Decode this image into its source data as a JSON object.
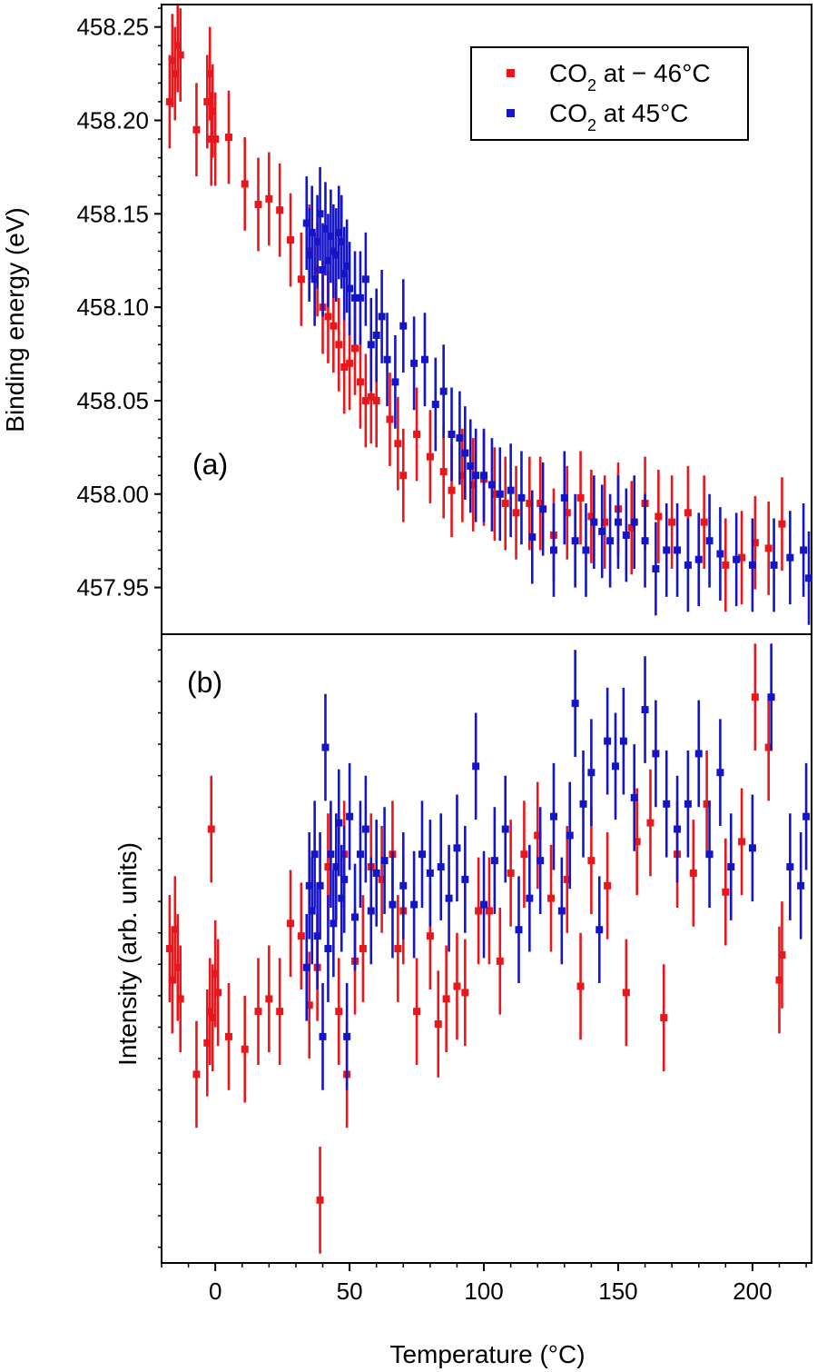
{
  "figure": {
    "x_axis_title": "Temperature (°C)",
    "legend_entries": [
      {
        "prefix": "CO",
        "sub": "2",
        "suffix": " at − 46°C",
        "color": "#e8171c"
      },
      {
        "prefix": "CO",
        "sub": "2",
        "suffix": " at 45°C",
        "color": "#1515c8"
      }
    ]
  },
  "chart_data": [
    {
      "type": "scatter",
      "panel_label": "(a)",
      "ylabel": "Binding energy (eV)",
      "xlim": [
        -20,
        222
      ],
      "ylim": [
        457.925,
        458.262
      ],
      "x_ticks": [
        0,
        50,
        100,
        150,
        200
      ],
      "y_ticks": [
        "457.95",
        "458.00",
        "458.05",
        "458.10",
        "458.15",
        "458.20",
        "458.25"
      ],
      "legend_position": "top-right",
      "series": [
        {
          "name": "CO2 at − 46°C",
          "color": "#e8171c",
          "error": 0.025,
          "points": [
            [
              -17,
              458.21
            ],
            [
              -16,
              458.232
            ],
            [
              -15,
              458.225
            ],
            [
              -14,
              458.24
            ],
            [
              -13,
              458.235
            ],
            [
              -7,
              458.195
            ],
            [
              -3,
              458.21
            ],
            [
              -2,
              458.225
            ],
            [
              -1.5,
              458.19
            ],
            [
              -1,
              458.205
            ],
            [
              0,
              458.19
            ],
            [
              5,
              458.191
            ],
            [
              11,
              458.166
            ],
            [
              16,
              458.155
            ],
            [
              20,
              458.158
            ],
            [
              24,
              458.152
            ],
            [
              28,
              458.136
            ],
            [
              32,
              458.115
            ],
            [
              35,
              458.13
            ],
            [
              38,
              458.12
            ],
            [
              40,
              458.1
            ],
            [
              42,
              458.095
            ],
            [
              44,
              458.09
            ],
            [
              46,
              458.08
            ],
            [
              48,
              458.068
            ],
            [
              50,
              458.07
            ],
            [
              52,
              458.078
            ],
            [
              54,
              458.06
            ],
            [
              56,
              458.05
            ],
            [
              58,
              458.052
            ],
            [
              60,
              458.05
            ],
            [
              65,
              458.04
            ],
            [
              68,
              458.027
            ],
            [
              70,
              458.01
            ],
            [
              75,
              458.032
            ],
            [
              80,
              458.02
            ],
            [
              85,
              458.012
            ],
            [
              88,
              458.002
            ],
            [
              92,
              458.01
            ],
            [
              96,
              458.005
            ],
            [
              100,
              458.008
            ],
            [
              104,
              458.0
            ],
            [
              108,
              457.995
            ],
            [
              112,
              457.99
            ],
            [
              117,
              457.995
            ],
            [
              121,
              457.995
            ],
            [
              126,
              457.978
            ],
            [
              131,
              457.99
            ],
            [
              136,
              457.998
            ],
            [
              140,
              457.988
            ],
            [
              145,
              457.985
            ],
            [
              150,
              457.992
            ],
            [
              155,
              457.982
            ],
            [
              160,
              457.995
            ],
            [
              165,
              457.988
            ],
            [
              170,
              457.985
            ],
            [
              176,
              457.99
            ],
            [
              182,
              457.985
            ],
            [
              190,
              457.962
            ],
            [
              196,
              457.966
            ],
            [
              201,
              457.974
            ],
            [
              206,
              457.971
            ],
            [
              211,
              457.984
            ]
          ]
        },
        {
          "name": "CO2 at 45°C",
          "color": "#1515c8",
          "error": 0.025,
          "points": [
            [
              34,
              458.145
            ],
            [
              35,
              458.128
            ],
            [
              36,
              458.14
            ],
            [
              37,
              458.115
            ],
            [
              38,
              458.135
            ],
            [
              39,
              458.15
            ],
            [
              40,
              458.12
            ],
            [
              41,
              458.142
            ],
            [
              42,
              458.125
            ],
            [
              43,
              458.138
            ],
            [
              44,
              458.13
            ],
            [
              45,
              458.128
            ],
            [
              46,
              458.14
            ],
            [
              47,
              458.135
            ],
            [
              48,
              458.118
            ],
            [
              49,
              458.122
            ],
            [
              50,
              458.11
            ],
            [
              52,
              458.105
            ],
            [
              54,
              458.105
            ],
            [
              56,
              458.115
            ],
            [
              58,
              458.08
            ],
            [
              60,
              458.085
            ],
            [
              62,
              458.095
            ],
            [
              64,
              458.072
            ],
            [
              67,
              458.06
            ],
            [
              70,
              458.09
            ],
            [
              74,
              458.07
            ],
            [
              78,
              458.072
            ],
            [
              82,
              458.048
            ],
            [
              85,
              458.055
            ],
            [
              88,
              458.032
            ],
            [
              91,
              458.03
            ],
            [
              93,
              458.022
            ],
            [
              95,
              458.015
            ],
            [
              97,
              458.01
            ],
            [
              100,
              458.01
            ],
            [
              103,
              458.005
            ],
            [
              106,
              458.0
            ],
            [
              110,
              458.002
            ],
            [
              114,
              457.998
            ],
            [
              118,
              457.977
            ],
            [
              122,
              457.992
            ],
            [
              126,
              457.97
            ],
            [
              130,
              457.998
            ],
            [
              134,
              457.975
            ],
            [
              138,
              457.97
            ],
            [
              141,
              457.985
            ],
            [
              144,
              457.98
            ],
            [
              147,
              457.975
            ],
            [
              150,
              457.985
            ],
            [
              153,
              457.978
            ],
            [
              156,
              457.985
            ],
            [
              160,
              457.975
            ],
            [
              164,
              457.96
            ],
            [
              168,
              457.97
            ],
            [
              172,
              457.97
            ],
            [
              176,
              457.962
            ],
            [
              180,
              457.965
            ],
            [
              184,
              457.975
            ],
            [
              188,
              457.968
            ],
            [
              194,
              457.965
            ],
            [
              200,
              457.962
            ],
            [
              208,
              457.962
            ],
            [
              214,
              457.966
            ],
            [
              219,
              457.97
            ],
            [
              221,
              457.955
            ]
          ]
        }
      ]
    },
    {
      "type": "scatter",
      "panel_label": "(b)",
      "ylabel": "Intensity (arb. units)",
      "xlim": [
        -20,
        222
      ],
      "ylim": [
        0,
        10
      ],
      "y_tick_labels_shown": false,
      "series": [
        {
          "name": "CO2 at − 46°C",
          "color": "#e8171c",
          "error": 0.85,
          "points": [
            [
              -17,
              5.0
            ],
            [
              -16,
              4.5
            ],
            [
              -15,
              5.3
            ],
            [
              -14,
              4.7
            ],
            [
              -13,
              4.2
            ],
            [
              -7,
              3.0
            ],
            [
              -3,
              3.5
            ],
            [
              -2,
              4.0
            ],
            [
              -1.5,
              6.9
            ],
            [
              -1,
              3.9
            ],
            [
              0,
              4.6
            ],
            [
              1,
              4.3
            ],
            [
              5,
              3.6
            ],
            [
              11,
              3.4
            ],
            [
              16,
              4.0
            ],
            [
              20,
              4.2
            ],
            [
              24,
              4.0
            ],
            [
              28,
              5.4
            ],
            [
              32,
              5.2
            ],
            [
              35,
              4.1
            ],
            [
              38,
              4.7
            ],
            [
              39,
              1.0
            ],
            [
              42,
              6.3
            ],
            [
              46,
              4.0
            ],
            [
              48,
              6.5
            ],
            [
              49,
              3.0
            ],
            [
              52,
              4.8
            ],
            [
              55,
              5.0
            ],
            [
              58,
              6.3
            ],
            [
              62,
              6.1
            ],
            [
              66,
              6.5
            ],
            [
              68,
              5.0
            ],
            [
              70,
              5.6
            ],
            [
              75,
              4.0
            ],
            [
              80,
              5.2
            ],
            [
              83,
              3.8
            ],
            [
              86,
              4.2
            ],
            [
              90,
              4.4
            ],
            [
              93,
              4.3
            ],
            [
              98,
              5.6
            ],
            [
              102,
              5.6
            ],
            [
              106,
              4.8
            ],
            [
              110,
              6.2
            ],
            [
              115,
              6.5
            ],
            [
              120,
              6.8
            ],
            [
              125,
              5.8
            ],
            [
              131,
              6.1
            ],
            [
              136,
              4.4
            ],
            [
              140,
              6.4
            ],
            [
              146,
              6.0
            ],
            [
              153,
              4.3
            ],
            [
              157,
              6.7
            ],
            [
              162,
              7.0
            ],
            [
              167,
              3.9
            ],
            [
              172,
              6.5
            ],
            [
              178,
              6.2
            ],
            [
              183,
              7.3
            ],
            [
              190,
              5.9
            ],
            [
              196,
              6.7
            ],
            [
              201,
              9.0
            ],
            [
              206,
              8.2
            ],
            [
              210,
              4.5
            ],
            [
              211,
              4.9
            ]
          ]
        },
        {
          "name": "CO2 at 45°C",
          "color": "#1515c8",
          "error": 0.85,
          "points": [
            [
              34,
              4.7
            ],
            [
              35,
              6.0
            ],
            [
              36,
              5.6
            ],
            [
              37,
              6.5
            ],
            [
              38,
              5.2
            ],
            [
              39,
              6.0
            ],
            [
              40,
              3.6
            ],
            [
              41,
              8.2
            ],
            [
              42,
              5.0
            ],
            [
              43,
              6.5
            ],
            [
              44,
              5.4
            ],
            [
              45,
              6.3
            ],
            [
              46,
              7.0
            ],
            [
              47,
              5.8
            ],
            [
              48,
              6.1
            ],
            [
              49,
              3.6
            ],
            [
              50,
              7.1
            ],
            [
              52,
              5.5
            ],
            [
              54,
              6.5
            ],
            [
              56,
              6.9
            ],
            [
              58,
              5.6
            ],
            [
              60,
              6.2
            ],
            [
              63,
              6.4
            ],
            [
              66,
              5.7
            ],
            [
              70,
              6.0
            ],
            [
              74,
              5.7
            ],
            [
              77,
              6.5
            ],
            [
              80,
              6.2
            ],
            [
              84,
              6.3
            ],
            [
              87,
              5.8
            ],
            [
              90,
              6.6
            ],
            [
              93,
              6.1
            ],
            [
              97,
              7.9
            ],
            [
              100,
              5.7
            ],
            [
              104,
              6.4
            ],
            [
              108,
              6.9
            ],
            [
              113,
              5.3
            ],
            [
              117,
              5.8
            ],
            [
              121,
              6.4
            ],
            [
              126,
              7.1
            ],
            [
              129,
              5.6
            ],
            [
              132,
              6.8
            ],
            [
              134,
              8.9
            ],
            [
              137,
              7.3
            ],
            [
              140,
              7.8
            ],
            [
              143,
              5.3
            ],
            [
              146,
              8.3
            ],
            [
              149,
              7.9
            ],
            [
              152,
              8.3
            ],
            [
              156,
              7.4
            ],
            [
              160,
              8.8
            ],
            [
              164,
              8.1
            ],
            [
              168,
              7.3
            ],
            [
              172,
              6.9
            ],
            [
              176,
              7.3
            ],
            [
              180,
              8.1
            ],
            [
              184,
              6.5
            ],
            [
              188,
              7.8
            ],
            [
              192,
              6.3
            ],
            [
              200,
              6.6
            ],
            [
              207,
              9.0
            ],
            [
              214,
              6.3
            ],
            [
              218,
              6.0
            ],
            [
              220,
              7.1
            ]
          ]
        }
      ]
    }
  ]
}
